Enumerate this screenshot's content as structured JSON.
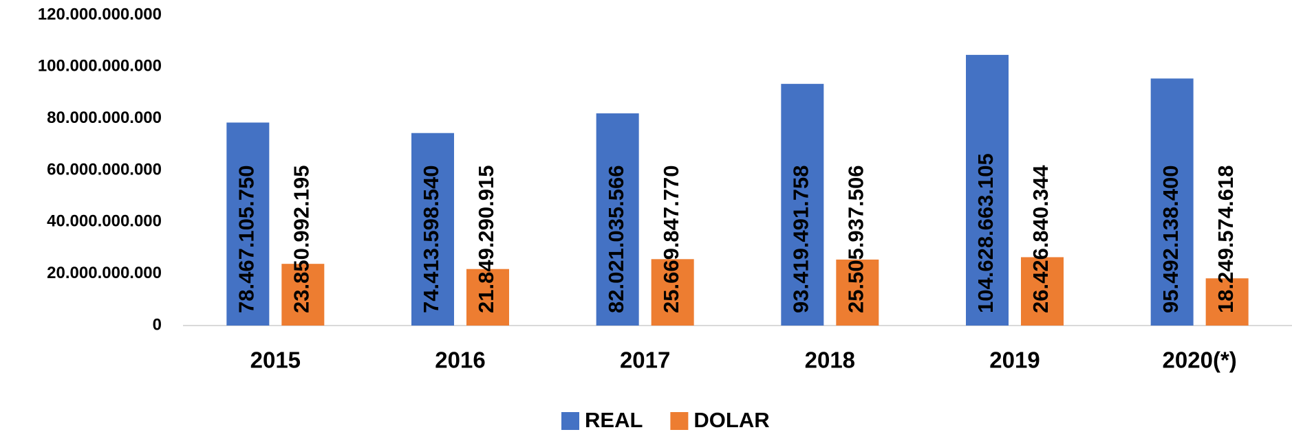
{
  "chart_data": {
    "type": "bar",
    "categories": [
      "2015",
      "2016",
      "2017",
      "2018",
      "2019",
      "2020(*)"
    ],
    "series": [
      {
        "name": "REAL",
        "color": "#4472c4",
        "values": [
          78467105750,
          74413598540,
          82021035566,
          93419491758,
          104628663105,
          95492138400
        ],
        "value_labels": [
          "78.467.105.750",
          "74.413.598.540",
          "82.021.035.566",
          "93.419.491.758",
          "104.628.663.105",
          "95.492.138.400"
        ]
      },
      {
        "name": "DOLAR",
        "color": "#ed7d31",
        "values": [
          23850992195,
          21849290915,
          25669847770,
          25505937506,
          26426840344,
          18249574618
        ],
        "value_labels": [
          "23.850.992.195",
          "21.849.290.915",
          "25.669.847.770",
          "25.505.937.506",
          "26.426.840.344",
          "18.249.574.618"
        ]
      }
    ],
    "ylim": [
      0,
      120000000000
    ],
    "yticks": [
      0,
      {
        "value": 20000000000,
        "label": "20.000.000.000"
      },
      {
        "value": 40000000000,
        "label": "40.000.000.000"
      },
      {
        "value": 60000000000,
        "label": "60.000.000.000"
      },
      {
        "value": 80000000000,
        "label": "80.000.000.000"
      },
      {
        "value": 100000000000,
        "label": "100.000.000.000"
      },
      {
        "value": 120000000000,
        "label": "120.000.000.000"
      }
    ],
    "legend": "bottom"
  }
}
